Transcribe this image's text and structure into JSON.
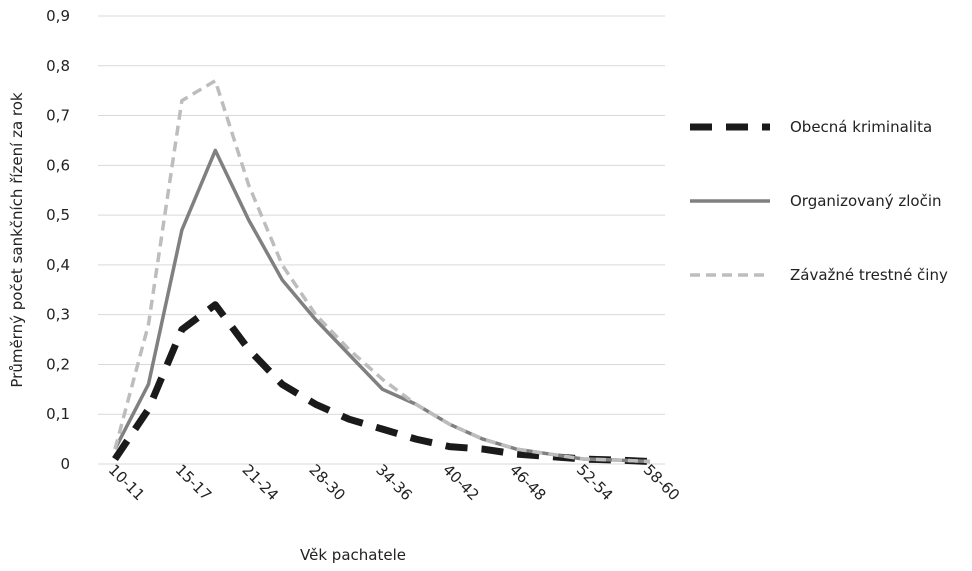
{
  "chart_data": {
    "type": "line",
    "x_label": "Věk pachatele",
    "y_label": "Průměrný počet sankčních řízení za rok",
    "categories": [
      "10-11",
      null,
      "15-17",
      null,
      "21-24",
      null,
      "28-30",
      null,
      "34-36",
      null,
      "40-42",
      null,
      "46-48",
      null,
      "52-54",
      null,
      "58-60"
    ],
    "series": [
      {
        "name": "Obecná kriminalita",
        "color": "#1a1a1a",
        "dash": "22,14",
        "width": 7,
        "values": [
          0.01,
          0.11,
          0.27,
          0.32,
          0.23,
          0.16,
          0.12,
          0.09,
          0.07,
          0.05,
          0.035,
          0.03,
          0.02,
          0.015,
          0.01,
          0.008,
          0.005
        ]
      },
      {
        "name": "Organizovaný zločin",
        "color": "#808080",
        "dash": "none",
        "width": 3.5,
        "values": [
          0.03,
          0.16,
          0.47,
          0.63,
          0.49,
          0.37,
          0.29,
          0.22,
          0.15,
          0.12,
          0.08,
          0.05,
          0.03,
          0.02,
          0.01,
          0.008,
          0.005
        ]
      },
      {
        "name": "Závažné trestné činy",
        "color": "#bdbdbd",
        "dash": "10,6",
        "width": 3.5,
        "values": [
          0.03,
          0.28,
          0.73,
          0.77,
          0.56,
          0.4,
          0.3,
          0.23,
          0.17,
          0.12,
          0.08,
          0.05,
          0.03,
          0.02,
          0.01,
          0.008,
          0.005
        ]
      }
    ],
    "ylim": [
      0,
      0.9
    ],
    "yticks": [
      0,
      {
        "value": 0.1,
        "label": "0,1"
      },
      {
        "value": 0.2,
        "label": "0,2"
      },
      {
        "value": 0.3,
        "label": "0,3"
      },
      {
        "value": 0.4,
        "label": "0,4"
      },
      {
        "value": 0.5,
        "label": "0,5"
      },
      {
        "value": 0.6,
        "label": "0,6"
      },
      {
        "value": 0.7,
        "label": "0,7"
      },
      {
        "value": 0.8,
        "label": "0,8"
      },
      {
        "value": 0.9,
        "label": "0,9"
      }
    ],
    "grid": true,
    "legend": "right"
  }
}
